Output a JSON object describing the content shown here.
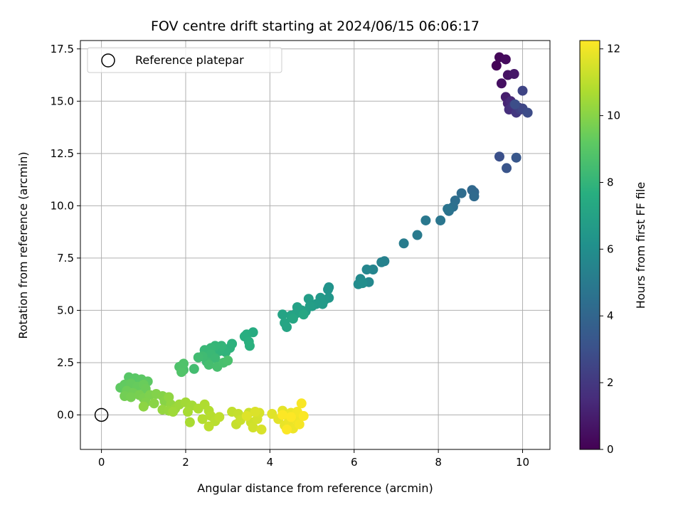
{
  "chart_data": {
    "type": "scatter",
    "title": "FOV centre drift starting at 2024/06/15 06:06:17",
    "xlabel": "Angular distance from reference (arcmin)",
    "ylabel": "Rotation from reference (arcmin)",
    "xlim": [
      -0.5,
      10.65
    ],
    "ylim": [
      -1.65,
      17.9
    ],
    "xticks": [
      0,
      2,
      4,
      6,
      8,
      10
    ],
    "yticks": [
      0.0,
      2.5,
      5.0,
      7.5,
      10.0,
      12.5,
      15.0,
      17.5
    ],
    "xtick_labels": [
      "0",
      "2",
      "4",
      "6",
      "8",
      "10"
    ],
    "ytick_labels": [
      "0.0",
      "2.5",
      "5.0",
      "7.5",
      "10.0",
      "12.5",
      "15.0",
      "17.5"
    ],
    "grid": true,
    "legend": {
      "position": "top-left",
      "entries": [
        "Reference platepar"
      ]
    },
    "reference_point": {
      "x": 0,
      "y": 0
    },
    "colorbar": {
      "label": "Hours from first FF file",
      "min": 0,
      "max": 12.25,
      "colormap": "viridis",
      "ticks": [
        0,
        2,
        4,
        6,
        8,
        10,
        12
      ],
      "tick_labels": [
        "0",
        "2",
        "4",
        "6",
        "8",
        "10",
        "12"
      ]
    },
    "series": [
      {
        "points": [
          {
            "x": 9.38,
            "y": 16.7,
            "t": 0.1
          },
          {
            "x": 9.45,
            "y": 17.1,
            "t": 0.2
          },
          {
            "x": 9.6,
            "y": 17.0,
            "t": 0.35
          },
          {
            "x": 9.5,
            "y": 15.85,
            "t": 0.5
          },
          {
            "x": 9.65,
            "y": 16.25,
            "t": 0.6
          },
          {
            "x": 9.8,
            "y": 16.3,
            "t": 0.8
          },
          {
            "x": 9.6,
            "y": 15.2,
            "t": 1.0
          },
          {
            "x": 9.65,
            "y": 14.9,
            "t": 1.2
          },
          {
            "x": 9.72,
            "y": 15.0,
            "t": 1.4
          },
          {
            "x": 9.68,
            "y": 14.6,
            "t": 1.6
          },
          {
            "x": 9.78,
            "y": 14.8,
            "t": 1.8
          },
          {
            "x": 9.85,
            "y": 14.45,
            "t": 2.0
          },
          {
            "x": 9.9,
            "y": 14.7,
            "t": 2.1
          },
          {
            "x": 9.95,
            "y": 14.6,
            "t": 2.3
          },
          {
            "x": 10.0,
            "y": 15.5,
            "t": 2.5
          },
          {
            "x": 10.0,
            "y": 14.65,
            "t": 2.6
          },
          {
            "x": 10.12,
            "y": 14.45,
            "t": 2.8
          },
          {
            "x": 9.82,
            "y": 14.85,
            "t": 2.9
          },
          {
            "x": 9.45,
            "y": 12.35,
            "t": 3.0
          },
          {
            "x": 9.62,
            "y": 11.8,
            "t": 3.2
          },
          {
            "x": 9.85,
            "y": 12.3,
            "t": 3.3
          },
          {
            "x": 8.85,
            "y": 10.65,
            "t": 4.0
          },
          {
            "x": 8.8,
            "y": 10.75,
            "t": 4.1
          },
          {
            "x": 8.85,
            "y": 10.45,
            "t": 4.2
          },
          {
            "x": 8.55,
            "y": 10.6,
            "t": 4.3
          },
          {
            "x": 8.4,
            "y": 10.25,
            "t": 4.4
          },
          {
            "x": 8.35,
            "y": 9.95,
            "t": 4.5
          },
          {
            "x": 8.25,
            "y": 9.75,
            "t": 4.6
          },
          {
            "x": 8.22,
            "y": 9.85,
            "t": 4.7
          },
          {
            "x": 8.05,
            "y": 9.3,
            "t": 4.8
          },
          {
            "x": 7.7,
            "y": 9.3,
            "t": 4.9
          },
          {
            "x": 7.5,
            "y": 8.6,
            "t": 5.0
          },
          {
            "x": 7.18,
            "y": 8.2,
            "t": 5.1
          },
          {
            "x": 6.72,
            "y": 7.35,
            "t": 5.3
          },
          {
            "x": 6.65,
            "y": 7.3,
            "t": 5.4
          },
          {
            "x": 6.45,
            "y": 6.95,
            "t": 5.5
          },
          {
            "x": 6.3,
            "y": 6.95,
            "t": 5.6
          },
          {
            "x": 6.35,
            "y": 6.35,
            "t": 5.7
          },
          {
            "x": 6.15,
            "y": 6.5,
            "t": 5.8
          },
          {
            "x": 6.1,
            "y": 6.25,
            "t": 5.9
          },
          {
            "x": 6.2,
            "y": 6.3,
            "t": 6.0
          },
          {
            "x": 5.4,
            "y": 6.1,
            "t": 6.2
          },
          {
            "x": 5.38,
            "y": 6.0,
            "t": 6.3
          },
          {
            "x": 5.4,
            "y": 5.6,
            "t": 6.4
          },
          {
            "x": 5.3,
            "y": 5.5,
            "t": 6.5
          },
          {
            "x": 5.2,
            "y": 5.6,
            "t": 6.55
          },
          {
            "x": 5.25,
            "y": 5.3,
            "t": 6.6
          },
          {
            "x": 5.1,
            "y": 5.3,
            "t": 6.65
          },
          {
            "x": 5.0,
            "y": 5.2,
            "t": 6.7
          },
          {
            "x": 4.92,
            "y": 5.55,
            "t": 6.75
          },
          {
            "x": 4.95,
            "y": 5.2,
            "t": 6.8
          },
          {
            "x": 4.85,
            "y": 4.95,
            "t": 6.85
          },
          {
            "x": 4.75,
            "y": 5.0,
            "t": 6.9
          },
          {
            "x": 4.65,
            "y": 5.15,
            "t": 6.95
          },
          {
            "x": 4.62,
            "y": 4.85,
            "t": 7.0
          },
          {
            "x": 4.5,
            "y": 4.75,
            "t": 7.05
          },
          {
            "x": 4.3,
            "y": 4.8,
            "t": 7.1
          },
          {
            "x": 4.4,
            "y": 4.2,
            "t": 7.15
          },
          {
            "x": 4.35,
            "y": 4.4,
            "t": 7.2
          },
          {
            "x": 4.55,
            "y": 4.6,
            "t": 7.25
          },
          {
            "x": 4.8,
            "y": 4.8,
            "t": 7.3
          },
          {
            "x": 3.6,
            "y": 3.95,
            "t": 7.5
          },
          {
            "x": 3.45,
            "y": 3.85,
            "t": 7.6
          },
          {
            "x": 3.4,
            "y": 3.75,
            "t": 7.65
          },
          {
            "x": 3.5,
            "y": 3.5,
            "t": 7.7
          },
          {
            "x": 3.52,
            "y": 3.3,
            "t": 7.75
          },
          {
            "x": 3.1,
            "y": 3.4,
            "t": 7.8
          },
          {
            "x": 3.05,
            "y": 3.2,
            "t": 7.85
          },
          {
            "x": 2.95,
            "y": 3.0,
            "t": 7.9
          },
          {
            "x": 2.8,
            "y": 3.05,
            "t": 7.95
          },
          {
            "x": 2.85,
            "y": 3.3,
            "t": 8.0
          },
          {
            "x": 2.7,
            "y": 3.3,
            "t": 8.05
          },
          {
            "x": 2.6,
            "y": 3.2,
            "t": 8.1
          },
          {
            "x": 2.45,
            "y": 3.1,
            "t": 8.15
          },
          {
            "x": 2.6,
            "y": 2.9,
            "t": 8.2
          },
          {
            "x": 2.7,
            "y": 2.7,
            "t": 8.25
          },
          {
            "x": 2.5,
            "y": 2.55,
            "t": 8.3
          },
          {
            "x": 2.4,
            "y": 2.8,
            "t": 8.35
          },
          {
            "x": 2.3,
            "y": 2.75,
            "t": 8.4
          },
          {
            "x": 2.2,
            "y": 2.2,
            "t": 8.45
          },
          {
            "x": 2.55,
            "y": 2.4,
            "t": 8.5
          },
          {
            "x": 2.75,
            "y": 2.3,
            "t": 8.55
          },
          {
            "x": 2.9,
            "y": 2.5,
            "t": 8.6
          },
          {
            "x": 3.0,
            "y": 2.6,
            "t": 8.65
          },
          {
            "x": 1.95,
            "y": 2.15,
            "t": 8.7
          },
          {
            "x": 1.85,
            "y": 2.3,
            "t": 8.75
          },
          {
            "x": 1.95,
            "y": 2.45,
            "t": 8.8
          },
          {
            "x": 1.9,
            "y": 2.05,
            "t": 8.85
          },
          {
            "x": 0.65,
            "y": 1.8,
            "t": 9.0
          },
          {
            "x": 0.8,
            "y": 1.75,
            "t": 9.05
          },
          {
            "x": 0.95,
            "y": 1.7,
            "t": 9.1
          },
          {
            "x": 1.1,
            "y": 1.6,
            "t": 9.15
          },
          {
            "x": 0.45,
            "y": 1.3,
            "t": 9.2
          },
          {
            "x": 0.55,
            "y": 1.45,
            "t": 9.25
          },
          {
            "x": 0.7,
            "y": 1.5,
            "t": 9.3
          },
          {
            "x": 0.85,
            "y": 1.35,
            "t": 9.35
          },
          {
            "x": 1.0,
            "y": 1.45,
            "t": 9.4
          },
          {
            "x": 1.05,
            "y": 1.25,
            "t": 9.45
          },
          {
            "x": 0.6,
            "y": 1.15,
            "t": 9.5
          },
          {
            "x": 0.75,
            "y": 1.05,
            "t": 9.55
          },
          {
            "x": 0.55,
            "y": 0.9,
            "t": 9.6
          },
          {
            "x": 0.7,
            "y": 0.85,
            "t": 9.65
          },
          {
            "x": 0.9,
            "y": 0.95,
            "t": 9.7
          },
          {
            "x": 1.0,
            "y": 0.8,
            "t": 9.75
          },
          {
            "x": 1.15,
            "y": 0.95,
            "t": 9.8
          },
          {
            "x": 1.05,
            "y": 0.6,
            "t": 9.85
          },
          {
            "x": 1.3,
            "y": 1.0,
            "t": 9.9
          },
          {
            "x": 1.45,
            "y": 0.9,
            "t": 9.95
          },
          {
            "x": 1.5,
            "y": 0.65,
            "t": 10.0
          },
          {
            "x": 1.25,
            "y": 0.55,
            "t": 10.05
          },
          {
            "x": 1.0,
            "y": 0.4,
            "t": 10.1
          },
          {
            "x": 1.6,
            "y": 0.85,
            "t": 10.15
          },
          {
            "x": 1.65,
            "y": 0.5,
            "t": 10.2
          },
          {
            "x": 1.45,
            "y": 0.25,
            "t": 10.25
          },
          {
            "x": 1.6,
            "y": 0.2,
            "t": 10.3
          },
          {
            "x": 1.75,
            "y": 0.3,
            "t": 10.35
          },
          {
            "x": 1.85,
            "y": 0.5,
            "t": 10.4
          },
          {
            "x": 1.7,
            "y": 0.15,
            "t": 10.45
          },
          {
            "x": 2.0,
            "y": 0.6,
            "t": 10.5
          },
          {
            "x": 2.15,
            "y": 0.45,
            "t": 10.55
          },
          {
            "x": 2.05,
            "y": 0.15,
            "t": 10.6
          },
          {
            "x": 2.1,
            "y": -0.35,
            "t": 10.65
          },
          {
            "x": 2.3,
            "y": 0.3,
            "t": 10.7
          },
          {
            "x": 2.45,
            "y": 0.5,
            "t": 10.75
          },
          {
            "x": 2.55,
            "y": 0.2,
            "t": 10.8
          },
          {
            "x": 2.4,
            "y": -0.2,
            "t": 10.85
          },
          {
            "x": 2.6,
            "y": -0.05,
            "t": 10.9
          },
          {
            "x": 2.7,
            "y": -0.3,
            "t": 10.95
          },
          {
            "x": 2.55,
            "y": -0.55,
            "t": 11.0
          },
          {
            "x": 2.8,
            "y": -0.1,
            "t": 11.05
          },
          {
            "x": 3.1,
            "y": 0.15,
            "t": 11.1
          },
          {
            "x": 3.25,
            "y": 0.05,
            "t": 11.15
          },
          {
            "x": 3.2,
            "y": -0.45,
            "t": 11.2
          },
          {
            "x": 3.3,
            "y": -0.25,
            "t": 11.25
          },
          {
            "x": 3.5,
            "y": 0.1,
            "t": 11.3
          },
          {
            "x": 3.55,
            "y": -0.35,
            "t": 11.35
          },
          {
            "x": 3.6,
            "y": -0.6,
            "t": 11.4
          },
          {
            "x": 3.7,
            "y": -0.2,
            "t": 11.45
          },
          {
            "x": 3.75,
            "y": 0.1,
            "t": 11.5
          },
          {
            "x": 3.8,
            "y": -0.7,
            "t": 11.55
          },
          {
            "x": 3.65,
            "y": 0.15,
            "t": 11.6
          },
          {
            "x": 3.45,
            "y": -0.05,
            "t": 11.65
          },
          {
            "x": 4.05,
            "y": 0.05,
            "t": 11.7
          },
          {
            "x": 4.2,
            "y": -0.2,
            "t": 11.75
          },
          {
            "x": 4.3,
            "y": 0.2,
            "t": 11.8
          },
          {
            "x": 4.35,
            "y": -0.5,
            "t": 11.85
          },
          {
            "x": 4.45,
            "y": -0.3,
            "t": 11.9
          },
          {
            "x": 4.5,
            "y": 0.1,
            "t": 11.92
          },
          {
            "x": 4.55,
            "y": -0.65,
            "t": 11.95
          },
          {
            "x": 4.6,
            "y": -0.2,
            "t": 12.0
          },
          {
            "x": 4.65,
            "y": 0.15,
            "t": 12.05
          },
          {
            "x": 4.7,
            "y": -0.45,
            "t": 12.1
          },
          {
            "x": 4.75,
            "y": 0.55,
            "t": 12.15
          },
          {
            "x": 4.8,
            "y": -0.05,
            "t": 12.2
          },
          {
            "x": 4.4,
            "y": -0.7,
            "t": 12.22
          },
          {
            "x": 4.3,
            "y": 0.0,
            "t": 12.24
          },
          {
            "x": 4.5,
            "y": -0.1,
            "t": 12.25
          }
        ]
      }
    ]
  }
}
